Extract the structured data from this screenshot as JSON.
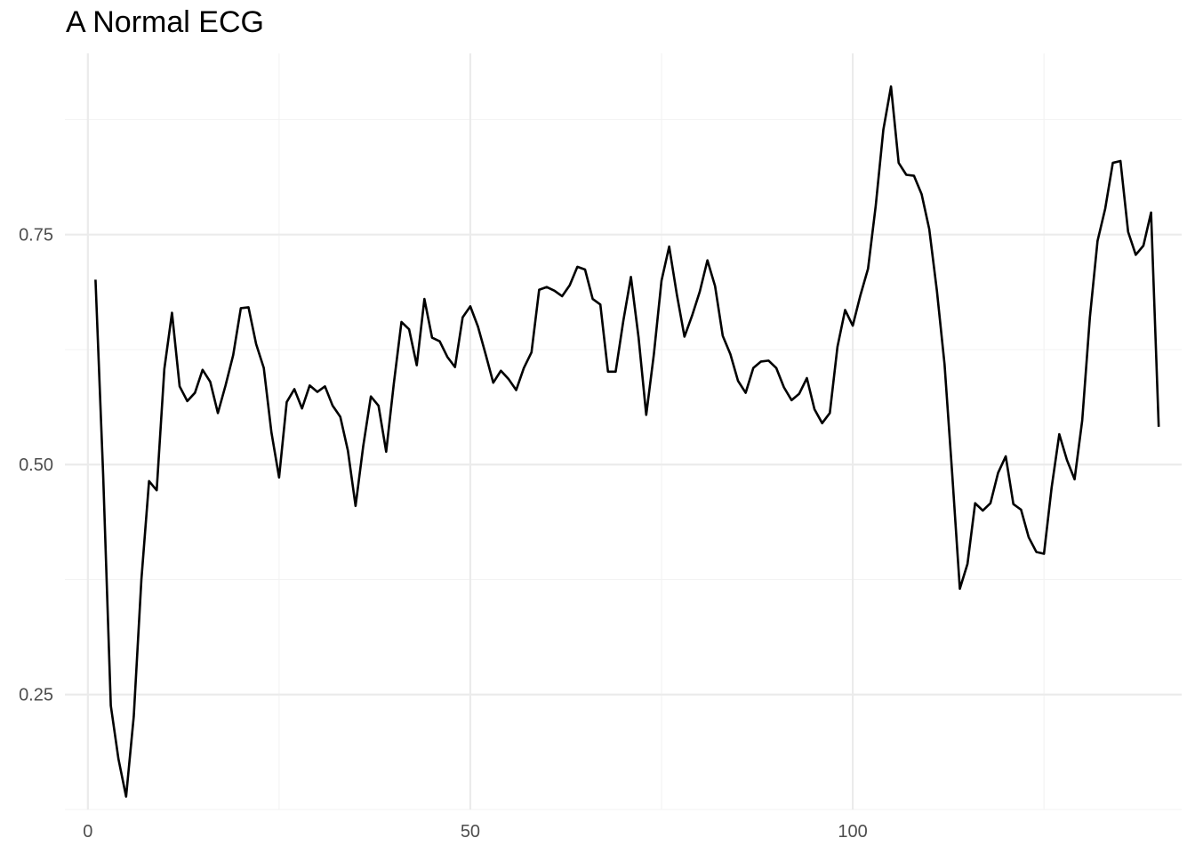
{
  "chart_data": {
    "type": "line",
    "title": "A Normal ECG",
    "xlabel": "",
    "ylabel": "",
    "xlim": [
      -3,
      143
    ],
    "ylim": [
      0.125,
      0.947
    ],
    "grid": true,
    "legend": "none",
    "x_ticks": [
      0,
      50,
      100
    ],
    "x_tick_labels": [
      "0",
      "50",
      "100"
    ],
    "x_minor_ticks": [
      25,
      75,
      125
    ],
    "y_ticks": [
      0.25,
      0.5,
      0.75
    ],
    "y_tick_labels": [
      "0.25",
      "0.50",
      "0.75"
    ],
    "y_minor_ticks": [
      0.125,
      0.375,
      0.625,
      0.875
    ],
    "colors": {
      "line": "#000000",
      "grid_major": "#ebebeb",
      "grid_minor": "#f3f3f3",
      "tick_text": "#4d4d4d"
    },
    "series": [
      {
        "x": [
          1,
          2,
          3,
          4,
          5,
          6,
          7,
          8,
          9,
          10,
          11,
          12,
          13,
          14,
          15,
          16,
          17,
          18,
          19,
          20,
          21,
          22,
          23,
          24,
          25,
          26,
          27,
          28,
          29,
          30,
          31,
          32,
          33,
          34,
          35,
          36,
          37,
          38,
          39,
          40,
          41,
          42,
          43,
          44,
          45,
          46,
          47,
          48,
          49,
          50,
          51,
          52,
          53,
          54,
          55,
          56,
          57,
          58,
          59,
          60,
          61,
          62,
          63,
          64,
          65,
          66,
          67,
          68,
          69,
          70,
          71,
          72,
          73,
          74,
          75,
          76,
          77,
          78,
          79,
          80,
          81,
          82,
          83,
          84,
          85,
          86,
          87,
          88,
          89,
          90,
          91,
          92,
          93,
          94,
          95,
          96,
          97,
          98,
          99,
          100,
          101,
          102,
          103,
          104,
          105,
          106,
          107,
          108,
          109,
          110,
          111,
          112,
          113,
          114,
          115,
          116,
          117,
          118,
          119,
          120,
          121,
          122,
          123,
          124,
          125,
          126,
          127,
          128,
          129,
          130,
          131,
          132,
          133,
          134,
          135,
          136,
          137,
          138,
          139,
          140
        ],
        "values": [
          0.701,
          0.489,
          0.238,
          0.18,
          0.139,
          0.226,
          0.375,
          0.482,
          0.472,
          0.604,
          0.665,
          0.585,
          0.569,
          0.578,
          0.603,
          0.59,
          0.556,
          0.586,
          0.619,
          0.67,
          0.671,
          0.631,
          0.605,
          0.535,
          0.486,
          0.568,
          0.582,
          0.561,
          0.586,
          0.579,
          0.585,
          0.564,
          0.552,
          0.515,
          0.455,
          0.52,
          0.574,
          0.564,
          0.514,
          0.588,
          0.655,
          0.647,
          0.608,
          0.68,
          0.638,
          0.634,
          0.617,
          0.606,
          0.66,
          0.672,
          0.65,
          0.62,
          0.589,
          0.602,
          0.593,
          0.581,
          0.605,
          0.622,
          0.69,
          0.693,
          0.689,
          0.683,
          0.695,
          0.715,
          0.712,
          0.68,
          0.674,
          0.601,
          0.601,
          0.656,
          0.704,
          0.638,
          0.554,
          0.62,
          0.7,
          0.737,
          0.685,
          0.639,
          0.662,
          0.688,
          0.722,
          0.694,
          0.64,
          0.62,
          0.591,
          0.578,
          0.605,
          0.612,
          0.613,
          0.605,
          0.584,
          0.57,
          0.577,
          0.594,
          0.56,
          0.545,
          0.556,
          0.628,
          0.668,
          0.651,
          0.684,
          0.713,
          0.781,
          0.864,
          0.911,
          0.828,
          0.815,
          0.814,
          0.794,
          0.756,
          0.689,
          0.609,
          0.49,
          0.365,
          0.392,
          0.458,
          0.45,
          0.458,
          0.491,
          0.509,
          0.457,
          0.451,
          0.421,
          0.405,
          0.403,
          0.475,
          0.533,
          0.505,
          0.484,
          0.548,
          0.66,
          0.743,
          0.778,
          0.828,
          0.83,
          0.753,
          0.728,
          0.738,
          0.774,
          0.541
        ]
      }
    ]
  }
}
